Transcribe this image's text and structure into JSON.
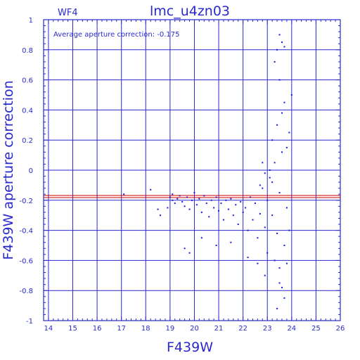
{
  "header": {
    "chip": "WF4",
    "title": "lmc_u4zn03"
  },
  "annotation": "Average aperture correction: -0.175",
  "chart_data": {
    "type": "scatter",
    "xlabel": "F439W",
    "ylabel": "F439W aperture correction",
    "xlim": [
      13.8,
      26
    ],
    "ylim": [
      -1,
      1
    ],
    "xticks": [
      14,
      15,
      16,
      17,
      18,
      19,
      20,
      21,
      22,
      23,
      24,
      25,
      26
    ],
    "yticks": [
      -1,
      -0.8,
      -0.6,
      -0.4,
      -0.2,
      0,
      0.2,
      0.4,
      0.6,
      0.8,
      1
    ],
    "ytick_labels": [
      "-1",
      "-0.8",
      "-0.6",
      "-0.4",
      "-0.2",
      "0",
      "0.2",
      "0.4",
      "0.6",
      "0.8",
      "1"
    ],
    "grid": true,
    "reference_line": {
      "y": -0.175,
      "color": "#cc0000",
      "label": ""
    },
    "colors": {
      "axis": "#2a2acc",
      "points": "#1a1adb",
      "line": "#cc0000"
    },
    "points": [
      [
        17.1,
        -0.16
      ],
      [
        18.2,
        -0.13
      ],
      [
        18.5,
        -0.26
      ],
      [
        18.6,
        -0.3
      ],
      [
        18.9,
        -0.25
      ],
      [
        19.0,
        -0.18
      ],
      [
        19.1,
        -0.2
      ],
      [
        19.1,
        -0.16
      ],
      [
        19.2,
        -0.22
      ],
      [
        19.3,
        -0.19
      ],
      [
        19.4,
        -0.17
      ],
      [
        19.5,
        -0.21
      ],
      [
        19.6,
        -0.24
      ],
      [
        19.7,
        -0.18
      ],
      [
        19.8,
        -0.26
      ],
      [
        19.9,
        -0.2
      ],
      [
        20.0,
        -0.15
      ],
      [
        20.1,
        -0.23
      ],
      [
        20.2,
        -0.19
      ],
      [
        20.3,
        -0.28
      ],
      [
        20.4,
        -0.17
      ],
      [
        20.5,
        -0.22
      ],
      [
        20.6,
        -0.31
      ],
      [
        20.7,
        -0.2
      ],
      [
        20.8,
        -0.25
      ],
      [
        20.9,
        -0.18
      ],
      [
        21.0,
        -0.27
      ],
      [
        21.1,
        -0.22
      ],
      [
        21.2,
        -0.33
      ],
      [
        21.3,
        -0.2
      ],
      [
        21.4,
        -0.26
      ],
      [
        21.5,
        -0.19
      ],
      [
        21.6,
        -0.3
      ],
      [
        21.7,
        -0.23
      ],
      [
        21.8,
        -0.36
      ],
      [
        21.9,
        -0.21
      ],
      [
        22.0,
        -0.28
      ],
      [
        22.1,
        -0.25
      ],
      [
        22.2,
        -0.4
      ],
      [
        22.3,
        -0.18
      ],
      [
        22.4,
        -0.33
      ],
      [
        22.5,
        -0.22
      ],
      [
        22.6,
        -0.45
      ],
      [
        22.7,
        -0.29
      ],
      [
        22.8,
        -0.12
      ],
      [
        22.9,
        -0.38
      ],
      [
        23.0,
        -0.2
      ],
      [
        23.1,
        -0.05
      ],
      [
        23.2,
        -0.3
      ],
      [
        23.3,
        0.05
      ],
      [
        23.4,
        -0.42
      ],
      [
        23.5,
        -0.15
      ],
      [
        23.6,
        0.12
      ],
      [
        23.7,
        -0.5
      ],
      [
        23.8,
        -0.25
      ],
      [
        19.6,
        -0.52
      ],
      [
        19.8,
        -0.55
      ],
      [
        20.3,
        -0.45
      ],
      [
        20.9,
        -0.5
      ],
      [
        21.5,
        -0.48
      ],
      [
        22.2,
        -0.58
      ],
      [
        22.6,
        -0.62
      ],
      [
        22.9,
        -0.7
      ],
      [
        23.0,
        -0.55
      ],
      [
        23.3,
        -0.6
      ],
      [
        23.5,
        -0.65
      ],
      [
        23.6,
        -0.78
      ],
      [
        23.7,
        -0.85
      ],
      [
        23.4,
        -0.92
      ],
      [
        23.5,
        -0.75
      ],
      [
        23.8,
        -0.62
      ],
      [
        23.9,
        -0.4
      ],
      [
        23.2,
        0.2
      ],
      [
        23.4,
        0.3
      ],
      [
        23.6,
        0.38
      ],
      [
        23.7,
        0.45
      ],
      [
        23.9,
        0.25
      ],
      [
        24.0,
        0.5
      ],
      [
        23.5,
        0.6
      ],
      [
        23.3,
        0.72
      ],
      [
        23.5,
        0.9
      ],
      [
        23.6,
        0.85
      ],
      [
        23.4,
        0.8
      ],
      [
        23.7,
        0.82
      ],
      [
        23.8,
        0.15
      ],
      [
        23.1,
        0.0
      ],
      [
        22.9,
        -0.02
      ],
      [
        22.8,
        0.05
      ],
      [
        23.2,
        -0.08
      ],
      [
        22.7,
        -0.1
      ]
    ]
  }
}
